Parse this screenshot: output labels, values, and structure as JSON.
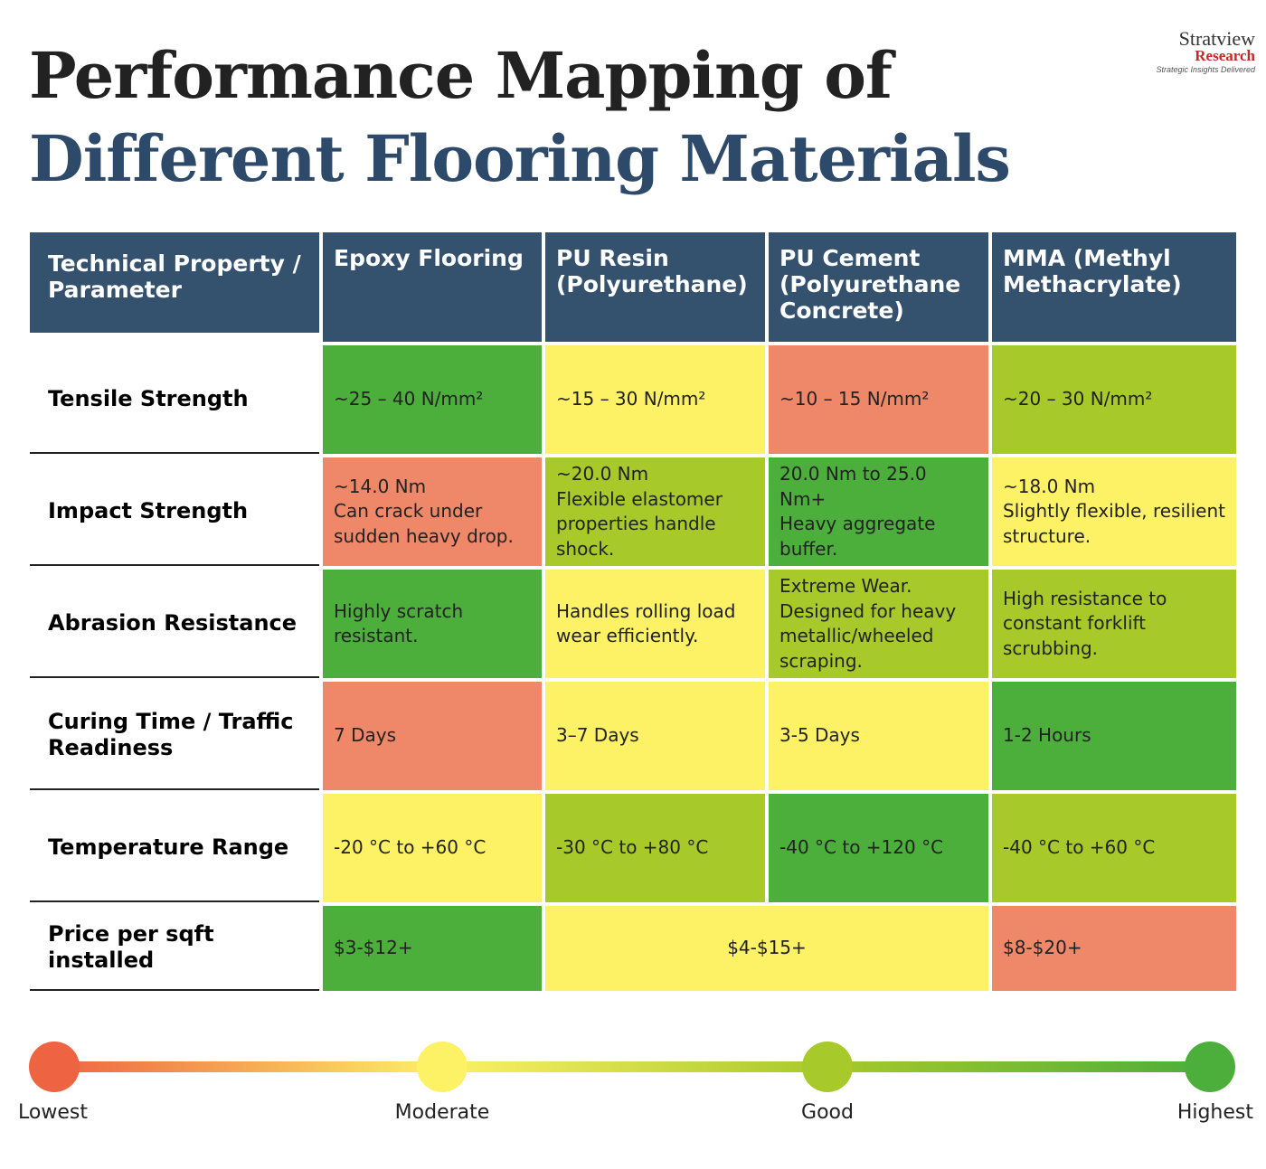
{
  "header": {
    "title_line1": "Performance Mapping of",
    "title_line2": "Different Flooring Materials"
  },
  "logo": {
    "name": "Stratview",
    "sub": "Research",
    "tagline": "Strategic Insights Delivered"
  },
  "table": {
    "header": [
      "Technical Property / Parameter",
      "Epoxy Flooring",
      "PU Resin (Polyurethane)",
      "PU Cement (Polyurethane Concrete)",
      "MMA (Methyl Methacrylate)"
    ],
    "rows": [
      {
        "label": "Tensile Strength",
        "cells": [
          {
            "text": "~25 – 40 N/mm²",
            "color": "#4cae3b"
          },
          {
            "text": "~15 – 30 N/mm²",
            "color": "#fdf166"
          },
          {
            "text": "~10 – 15 N/mm²",
            "color": "#ef8869"
          },
          {
            "text": "~20 – 30 N/mm²",
            "color": "#a7c92a"
          }
        ]
      },
      {
        "label": "Impact Strength",
        "cells": [
          {
            "text": "~14.0 Nm\nCan crack under sudden heavy drop.",
            "color": "#ef8869"
          },
          {
            "text": "~20.0 Nm\nFlexible elastomer properties handle shock.",
            "color": "#a7c92a"
          },
          {
            "text": "20.0 Nm to 25.0 Nm+\nHeavy aggregate buffer.",
            "color": "#4cae3b"
          },
          {
            "text": "~18.0 Nm\nSlightly flexible, resilient structure.",
            "color": "#fdf166"
          }
        ]
      },
      {
        "label": "Abrasion Resistance",
        "cells": [
          {
            "text": "Highly scratch resistant.",
            "color": "#4cae3b"
          },
          {
            "text": "Handles rolling load wear efficiently.",
            "color": "#fdf166"
          },
          {
            "text": "Extreme Wear. Designed for heavy metallic/wheeled scraping.",
            "color": "#a7c92a"
          },
          {
            "text": "High resistance to constant forklift scrubbing.",
            "color": "#a7c92a"
          }
        ]
      },
      {
        "label": "Curing Time / Traffic Readiness",
        "cells": [
          {
            "text": "7 Days",
            "color": "#ef8869"
          },
          {
            "text": "3–7 Days",
            "color": "#fdf166"
          },
          {
            "text": "3-5 Days",
            "color": "#fdf166"
          },
          {
            "text": "1-2 Hours",
            "color": "#4cae3b"
          }
        ]
      },
      {
        "label": "Temperature Range",
        "cells": [
          {
            "text": "-20 °C to +60 °C",
            "color": "#fdf166"
          },
          {
            "text": "-30 °C to +80 °C",
            "color": "#a7c92a"
          },
          {
            "text": "-40 °C to +120 °C",
            "color": "#4cae3b"
          },
          {
            "text": "-40 °C to +60 °C",
            "color": "#a7c92a"
          }
        ]
      },
      {
        "label": "Price per sqft installed",
        "cells": [
          {
            "text": "$3-$12+",
            "color": "#4cae3b"
          },
          {
            "text": "$4-$15+",
            "color": "#fdf166",
            "span": 2
          },
          {
            "text": "$8-$20+",
            "color": "#ef8869"
          }
        ]
      }
    ]
  },
  "legend": [
    {
      "label": "Lowest",
      "color": "#ee6443"
    },
    {
      "label": "Moderate",
      "color": "#fdf166"
    },
    {
      "label": "Good",
      "color": "#a7c92a"
    },
    {
      "label": "Highest",
      "color": "#4cae3b"
    }
  ]
}
